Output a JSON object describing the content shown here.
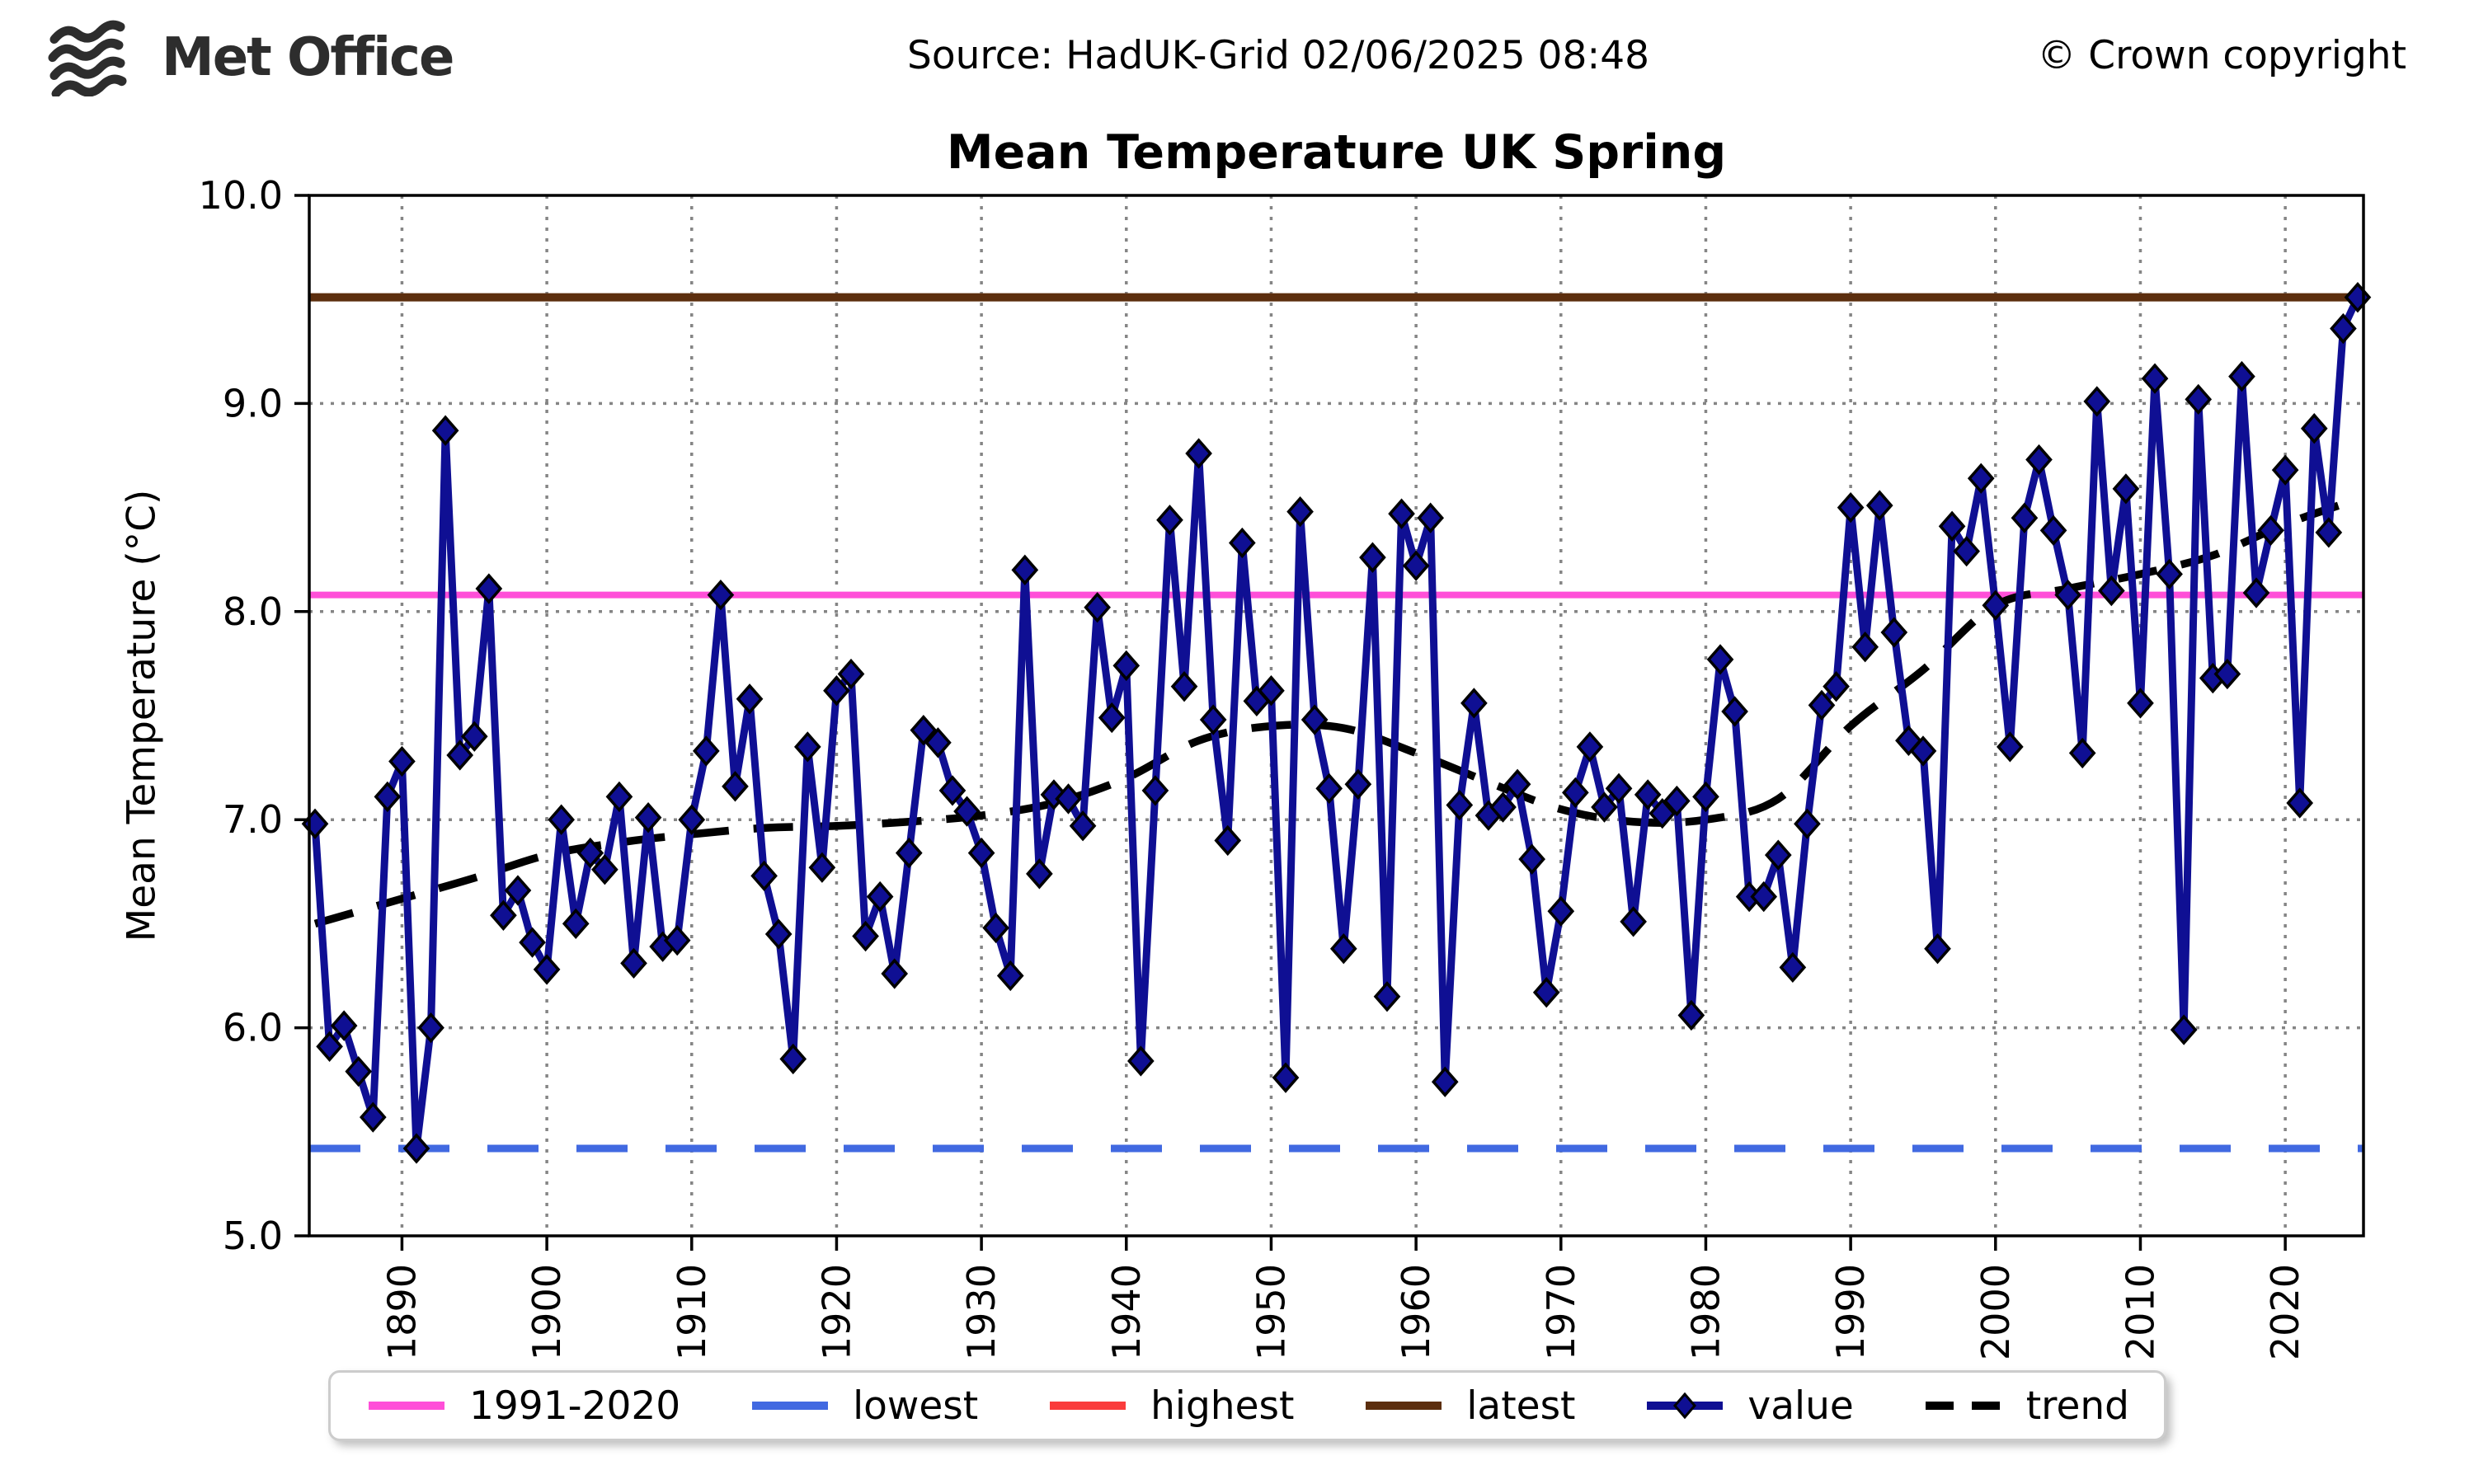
{
  "header": {
    "logo_text": "Met Office",
    "source": "Source: HadUK-Grid 02/06/2025 08:48",
    "copyright": "© Crown copyright"
  },
  "chart_data": {
    "type": "line",
    "title": "Mean Temperature UK Spring",
    "ylabel": "Mean Temperature (°C)",
    "ylim": [
      5.0,
      10.0
    ],
    "xlim": [
      1883.6,
      2025.4
    ],
    "grid": true,
    "y_ticks": [
      "10.0",
      "9.0",
      "8.0",
      "7.0",
      "6.0",
      "5.0"
    ],
    "y_tick_values": [
      10.0,
      9.0,
      8.0,
      7.0,
      6.0,
      5.0
    ],
    "x_ticks": [
      "1890",
      "1900",
      "1910",
      "1920",
      "1930",
      "1940",
      "1950",
      "1960",
      "1970",
      "1980",
      "1990",
      "2000",
      "2010",
      "2020"
    ],
    "x_tick_values": [
      1890,
      1900,
      1910,
      1920,
      1930,
      1940,
      1950,
      1960,
      1970,
      1980,
      1990,
      2000,
      2010,
      2020
    ],
    "value_series": {
      "name": "value",
      "start_year": 1884,
      "end_year": 2025,
      "values": [
        6.98,
        5.91,
        6.01,
        5.79,
        5.57,
        7.11,
        7.28,
        5.42,
        6.0,
        8.87,
        7.31,
        7.4,
        8.11,
        6.54,
        6.66,
        6.41,
        6.28,
        7.0,
        6.5,
        6.84,
        6.76,
        7.11,
        6.31,
        7.01,
        6.39,
        6.42,
        7.0,
        7.33,
        8.08,
        7.16,
        7.58,
        6.73,
        6.45,
        5.85,
        7.35,
        6.77,
        7.62,
        7.7,
        6.44,
        6.63,
        6.26,
        6.84,
        7.43,
        7.37,
        7.14,
        7.04,
        6.84,
        6.48,
        6.25,
        8.2,
        6.74,
        7.12,
        7.1,
        6.97,
        8.02,
        7.49,
        7.74,
        5.84,
        7.14,
        8.44,
        7.64,
        8.76,
        7.48,
        6.9,
        8.33,
        7.57,
        7.62,
        5.76,
        8.48,
        7.48,
        7.15,
        6.38,
        7.17,
        8.26,
        6.15,
        8.47,
        8.22,
        8.45,
        5.74,
        7.07,
        7.56,
        7.02,
        7.06,
        7.17,
        6.81,
        6.17,
        6.56,
        7.13,
        7.35,
        7.06,
        7.15,
        6.51,
        7.12,
        7.03,
        7.09,
        6.06,
        7.11,
        7.77,
        7.52,
        6.63,
        6.63,
        6.83,
        6.29,
        6.98,
        7.55,
        7.64,
        8.5,
        7.83,
        8.51,
        7.9,
        7.38,
        7.33,
        6.38,
        8.41,
        8.29,
        8.64,
        8.03,
        7.35,
        8.45,
        8.73,
        8.39,
        8.08,
        7.32,
        9.01,
        8.1,
        8.59,
        7.56,
        9.12,
        8.18,
        5.99,
        9.02,
        7.68,
        7.7,
        9.13,
        8.09,
        8.39,
        8.68,
        7.08,
        8.88,
        8.38,
        9.36,
        9.51
      ]
    },
    "trend_series": {
      "name": "trend",
      "points": [
        [
          1884,
          6.5
        ],
        [
          1890,
          6.62
        ],
        [
          1895,
          6.72
        ],
        [
          1900,
          6.83
        ],
        [
          1905,
          6.89
        ],
        [
          1910,
          6.93
        ],
        [
          1915,
          6.96
        ],
        [
          1920,
          6.97
        ],
        [
          1925,
          6.99
        ],
        [
          1930,
          7.02
        ],
        [
          1935,
          7.08
        ],
        [
          1940,
          7.2
        ],
        [
          1945,
          7.38
        ],
        [
          1950,
          7.45
        ],
        [
          1955,
          7.44
        ],
        [
          1960,
          7.32
        ],
        [
          1965,
          7.18
        ],
        [
          1970,
          7.05
        ],
        [
          1975,
          6.99
        ],
        [
          1980,
          7.0
        ],
        [
          1985,
          7.1
        ],
        [
          1990,
          7.45
        ],
        [
          1995,
          7.72
        ],
        [
          2000,
          8.03
        ],
        [
          2005,
          8.11
        ],
        [
          2010,
          8.18
        ],
        [
          2015,
          8.27
        ],
        [
          2020,
          8.42
        ],
        [
          2025,
          8.54
        ]
      ]
    },
    "reference_lines": {
      "average_1991_2020": 8.08,
      "lowest": 5.42,
      "highest": 9.51,
      "latest": 9.51
    },
    "colors": {
      "value": "#0f0f93",
      "trend": "#000000",
      "average_1991_2020": "#ff4fd8",
      "lowest": "#4169e1",
      "highest": "#fa3c3c",
      "latest": "#5c2e0e",
      "grid": "#858585",
      "axis": "#000000"
    },
    "legend": {
      "items": [
        {
          "label": "1991-2020",
          "color": "#ff4fd8",
          "style": "solid"
        },
        {
          "label": "lowest",
          "color": "#4169e1",
          "style": "solid"
        },
        {
          "label": "highest",
          "color": "#fa3c3c",
          "style": "solid"
        },
        {
          "label": "latest",
          "color": "#5c2e0e",
          "style": "solid"
        },
        {
          "label": "value",
          "color": "#0f0f93",
          "style": "marker-line"
        },
        {
          "label": "trend",
          "color": "#000000",
          "style": "dashed"
        }
      ]
    }
  }
}
